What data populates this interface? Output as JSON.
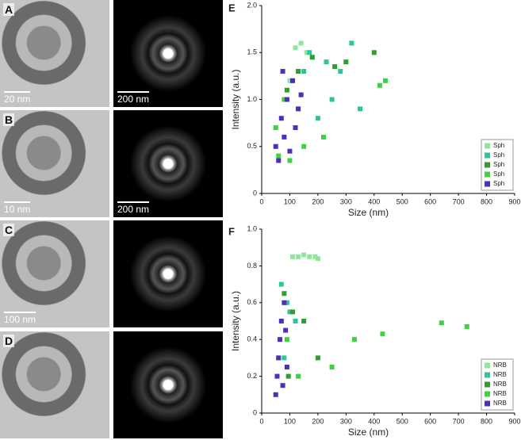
{
  "images": [
    {
      "label": "A",
      "scale_bar": "20 nm"
    },
    {
      "scale_bar": "200 nm"
    },
    {
      "label": "B",
      "scale_bar": "10 nm"
    },
    {
      "scale_bar": "200 nm"
    },
    {
      "label": "C",
      "scale_bar": "100 nm"
    },
    {},
    {
      "label": "D"
    },
    {}
  ],
  "chart_data": [
    {
      "type": "scatter",
      "title": "E",
      "xlabel": "Size (nm)",
      "ylabel": "Intensity (a.u.)",
      "xlim": [
        0,
        900
      ],
      "xticks": [
        0,
        100,
        200,
        300,
        400,
        500,
        600,
        700,
        800,
        900
      ],
      "ylim": [
        0,
        2
      ],
      "yticks": [
        0,
        0.5,
        {
          "value": 1,
          "label": "1.0"
        },
        1.5,
        {
          "value": 2,
          "label": "2.0"
        }
      ],
      "legend": "lower right",
      "series": [
        {
          "name": "Sph",
          "color": "#8de89b",
          "x": [
            120,
            140,
            160,
            100,
            180,
            130
          ],
          "values": [
            1.55,
            1.6,
            1.5,
            1.2,
            1.45,
            0.9
          ]
        },
        {
          "name": "Sph",
          "color": "#2ec4a0",
          "x": [
            170,
            230,
            280,
            320,
            250,
            350,
            200,
            150
          ],
          "values": [
            1.5,
            1.4,
            1.3,
            1.6,
            1.0,
            0.9,
            0.8,
            1.3
          ]
        },
        {
          "name": "Sph",
          "color": "#2e9e2e",
          "x": [
            90,
            130,
            180,
            260,
            300,
            400
          ],
          "values": [
            1.1,
            1.3,
            1.45,
            1.35,
            1.4,
            1.5
          ]
        },
        {
          "name": "Sph",
          "color": "#3cd43c",
          "x": [
            50,
            80,
            110,
            150,
            220,
            440,
            420,
            60,
            100
          ],
          "values": [
            0.7,
            1.0,
            1.2,
            0.5,
            0.6,
            1.2,
            1.15,
            0.4,
            0.35
          ]
        },
        {
          "name": "Sph",
          "color": "#4b2fbf",
          "x": [
            50,
            70,
            90,
            110,
            130,
            60,
            80,
            100,
            120,
            140,
            75
          ],
          "values": [
            0.5,
            0.8,
            1.0,
            1.2,
            0.9,
            0.35,
            0.6,
            0.45,
            0.7,
            1.05,
            1.3
          ]
        }
      ]
    },
    {
      "type": "scatter",
      "title": "F",
      "xlabel": "Size (nm)",
      "ylabel": "Intensity (a.u.)",
      "xlim": [
        0,
        900
      ],
      "xticks": [
        0,
        100,
        200,
        300,
        400,
        500,
        600,
        700,
        800,
        900
      ],
      "ylim": [
        0,
        1
      ],
      "yticks": [
        0,
        0.2,
        0.4,
        0.6,
        0.8,
        {
          "value": 1,
          "label": "1.0"
        }
      ],
      "legend": "lower right",
      "series": [
        {
          "name": "NRB",
          "color": "#8de89b",
          "x": [
            110,
            130,
            150,
            170,
            190,
            200
          ],
          "values": [
            0.85,
            0.85,
            0.86,
            0.85,
            0.85,
            0.84
          ]
        },
        {
          "name": "NRB",
          "color": "#2ec4a0",
          "x": [
            70,
            90,
            100,
            120,
            80
          ],
          "values": [
            0.7,
            0.6,
            0.55,
            0.5,
            0.3
          ]
        },
        {
          "name": "NRB",
          "color": "#2e9e2e",
          "x": [
            80,
            110,
            150,
            200,
            95
          ],
          "values": [
            0.65,
            0.55,
            0.5,
            0.3,
            0.2
          ]
        },
        {
          "name": "NRB",
          "color": "#3cd43c",
          "x": [
            60,
            90,
            130,
            250,
            330,
            430,
            640,
            730
          ],
          "values": [
            0.3,
            0.4,
            0.2,
            0.25,
            0.4,
            0.43,
            0.49,
            0.47
          ]
        },
        {
          "name": "NRB",
          "color": "#4b2fbf",
          "x": [
            50,
            60,
            70,
            80,
            90,
            65,
            75,
            55,
            85
          ],
          "values": [
            0.1,
            0.3,
            0.5,
            0.6,
            0.25,
            0.4,
            0.15,
            0.2,
            0.45
          ]
        }
      ]
    }
  ]
}
